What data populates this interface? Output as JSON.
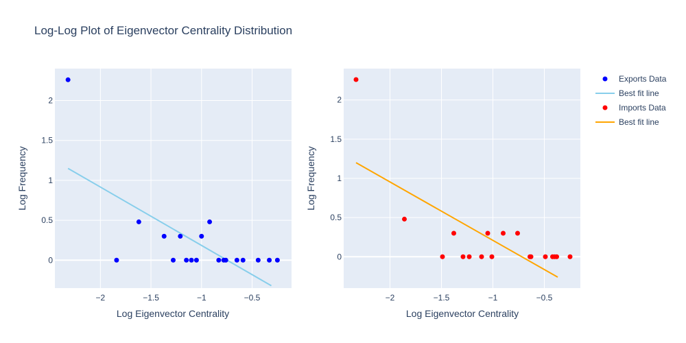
{
  "chart_data": {
    "type": "scatter",
    "title": "Log-Log Plot of Eigenvector Centrality Distribution",
    "colors": {
      "plot_bg": "#e5ecf6",
      "exports": "#0000ff",
      "exports_fit": "#87ceeb",
      "imports": "#ff0000",
      "imports_fit": "#ffa500"
    },
    "legend": {
      "placement": "right",
      "items": [
        {
          "label": "Exports Data",
          "kind": "marker",
          "color": "#0000ff"
        },
        {
          "label": "Best fit line",
          "kind": "line",
          "color": "#87ceeb"
        },
        {
          "label": "Imports Data",
          "kind": "marker",
          "color": "#ff0000"
        },
        {
          "label": "Best fit line",
          "kind": "line",
          "color": "#ffa500"
        }
      ]
    },
    "subplots": [
      {
        "xlabel": "Log Eigenvector Centrality",
        "ylabel": "Log Frequency",
        "xlim": [
          -2.45,
          -0.11
        ],
        "ylim": [
          -0.35,
          2.4
        ],
        "xticks": [
          -2,
          -1.5,
          -1,
          -0.5
        ],
        "xtick_labels": [
          "−2",
          "−1.5",
          "−1",
          "−0.5"
        ],
        "yticks": [
          0,
          0.5,
          1,
          1.5,
          2
        ],
        "yticks_labels": [
          "0",
          "0.5",
          "1",
          "1.5",
          "2"
        ],
        "series": [
          {
            "name": "Exports Data",
            "mode": "markers",
            "color": "#0000ff",
            "x": [
              -2.32,
              -1.84,
              -1.62,
              -1.37,
              -1.28,
              -1.21,
              -1.15,
              -1.1,
              -1.05,
              -1.0,
              -0.92,
              -0.83,
              -0.78,
              -0.76,
              -0.65,
              -0.59,
              -0.44,
              -0.33,
              -0.25
            ],
            "y": [
              2.26,
              0,
              0.48,
              0.3,
              0,
              0.3,
              0,
              0,
              0,
              0.3,
              0.48,
              0,
              0,
              0,
              0,
              0,
              0,
              0,
              0
            ]
          },
          {
            "name": "Best fit line",
            "mode": "lines",
            "color": "#87ceeb",
            "x": [
              -2.32,
              -0.31
            ],
            "y": [
              1.15,
              -0.32
            ]
          }
        ]
      },
      {
        "xlabel": "Log Eigenvector Centrality",
        "ylabel": "Log Frequency",
        "xlim": [
          -2.45,
          -0.15
        ],
        "ylim": [
          -0.4,
          2.4
        ],
        "xticks": [
          -2,
          -1.5,
          -1,
          -0.5
        ],
        "xtick_labels": [
          "−2",
          "−1.5",
          "−1",
          "−0.5"
        ],
        "yticks": [
          0,
          0.5,
          1,
          1.5,
          2
        ],
        "yticks_labels": [
          "0",
          "0.5",
          "1",
          "1.5",
          "2"
        ],
        "series": [
          {
            "name": "Imports Data",
            "mode": "markers",
            "color": "#ff0000",
            "x": [
              -2.33,
              -1.86,
              -1.49,
              -1.38,
              -1.29,
              -1.23,
              -1.11,
              -1.05,
              -1.01,
              -0.9,
              -0.76,
              -0.64,
              -0.63,
              -0.49,
              -0.42,
              -0.4,
              -0.38,
              -0.25
            ],
            "y": [
              2.26,
              0.48,
              0,
              0.3,
              0,
              0,
              0,
              0.3,
              0,
              0.3,
              0.3,
              0,
              0,
              0,
              0,
              0,
              0,
              0
            ]
          },
          {
            "name": "Best fit line",
            "mode": "lines",
            "color": "#ffa500",
            "x": [
              -2.33,
              -0.37
            ],
            "y": [
              1.2,
              -0.26
            ]
          }
        ]
      }
    ]
  }
}
